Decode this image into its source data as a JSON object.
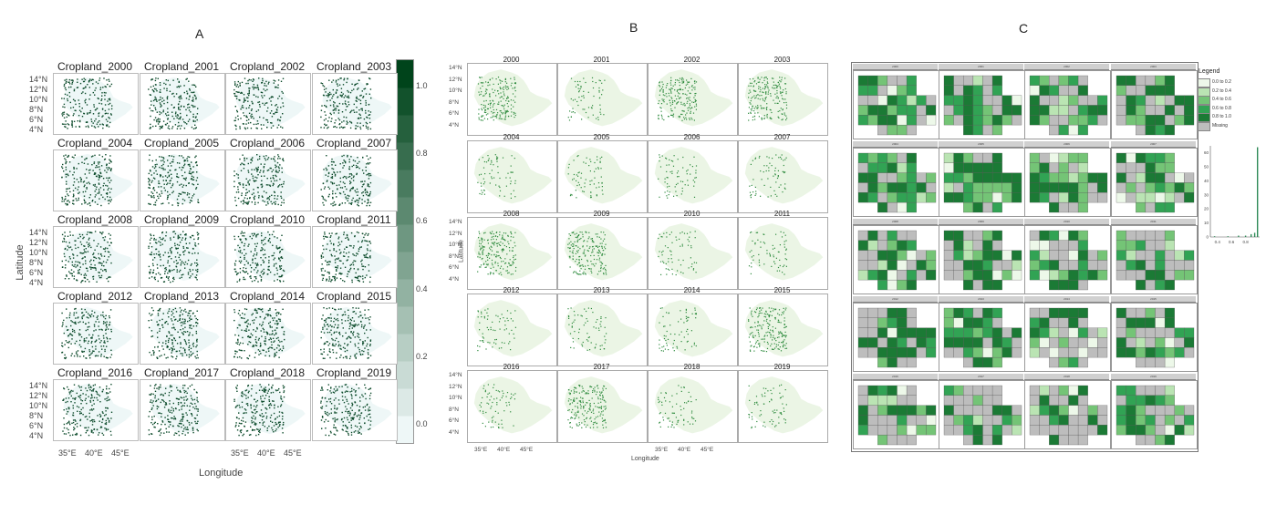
{
  "figure": {
    "panel_labels": [
      "A",
      "B",
      "C"
    ]
  },
  "chart_data": [
    {
      "panel": "A",
      "type": "heatmap",
      "facets": [
        "Cropland_2000",
        "Cropland_2001",
        "Cropland_2002",
        "Cropland_2003",
        "Cropland_2004",
        "Cropland_2005",
        "Cropland_2006",
        "Cropland_2007",
        "Cropland_2008",
        "Cropland_2009",
        "Cropland_2010",
        "Cropland_2011",
        "Cropland_2012",
        "Cropland_2013",
        "Cropland_2014",
        "Cropland_2015",
        "Cropland_2016",
        "Cropland_2017",
        "Cropland_2018",
        "Cropland_2019"
      ],
      "xlabel": "Longitude",
      "ylabel": "Latitude",
      "x_ticks": [
        "35°E",
        "40°E",
        "45°E"
      ],
      "y_ticks": [
        "14°N",
        "12°N",
        "10°N",
        "8°N",
        "6°N",
        "4°N"
      ],
      "colorbar": {
        "min": -0.05,
        "max": 1.08,
        "ticks": [
          0.0,
          0.2,
          0.4,
          0.6,
          0.8,
          1.0
        ],
        "tick_labels": [
          "0.0",
          "0.2",
          "0.4",
          "0.6",
          "0.8",
          "1.0"
        ]
      },
      "colors": {
        "low": "#eef7f7",
        "high": "#00441b",
        "map_fill": "#eef7f7",
        "pixel": "#0b4a2a"
      }
    },
    {
      "panel": "B",
      "type": "heatmap",
      "facets": [
        "2000",
        "2001",
        "2002",
        "2003",
        "2004",
        "2005",
        "2006",
        "2007",
        "2008",
        "2009",
        "2010",
        "2011",
        "2012",
        "2013",
        "2014",
        "2015",
        "2016",
        "2017",
        "2018",
        "2019"
      ],
      "xlabel": "Longitude",
      "ylabel": "Latitude",
      "x_ticks": [
        "35°E",
        "40°E",
        "45°E"
      ],
      "y_ticks": [
        "14°N",
        "12°N",
        "10°N",
        "8°N",
        "6°N",
        "4°N"
      ],
      "colors": {
        "map_fill": "#ebf5e5",
        "pixel": "#2e8b3e"
      }
    },
    {
      "panel": "C",
      "type": "heatmap",
      "facets": [
        "2000",
        "2001",
        "2002",
        "2003",
        "2004",
        "2005",
        "2006",
        "2007",
        "2008",
        "2009",
        "2010",
        "2011",
        "2012",
        "2013",
        "2014",
        "2015",
        "2016",
        "2017",
        "2018",
        "2019"
      ],
      "legend": {
        "title": "Legend",
        "entries": [
          {
            "label": "0.0 to 0.2",
            "color": "#edf8e9"
          },
          {
            "label": "0.2 to 0.4",
            "color": "#bae4b3"
          },
          {
            "label": "0.4 to 0.6",
            "color": "#74c476"
          },
          {
            "label": "0.6 to 0.8",
            "color": "#31a354"
          },
          {
            "label": "0.8 to 1.0",
            "color": "#1b7a35"
          },
          {
            "label": "Missing",
            "color": "#bdbdbd"
          }
        ]
      },
      "histogram": {
        "x_ticks": [
          "0.4",
          "0.6",
          "0.8"
        ],
        "y_ticks": [
          "0",
          "10",
          "20",
          "30",
          "40",
          "50",
          "60"
        ],
        "ylim": [
          0,
          65
        ],
        "bins": [
          {
            "x": 0.36,
            "count": 0.5
          },
          {
            "x": 0.55,
            "count": 0.5
          },
          {
            "x": 0.7,
            "count": 1
          },
          {
            "x": 0.8,
            "count": 1
          },
          {
            "x": 0.88,
            "count": 2
          },
          {
            "x": 0.93,
            "count": 3
          },
          {
            "x": 0.97,
            "count": 64
          }
        ]
      }
    }
  ]
}
